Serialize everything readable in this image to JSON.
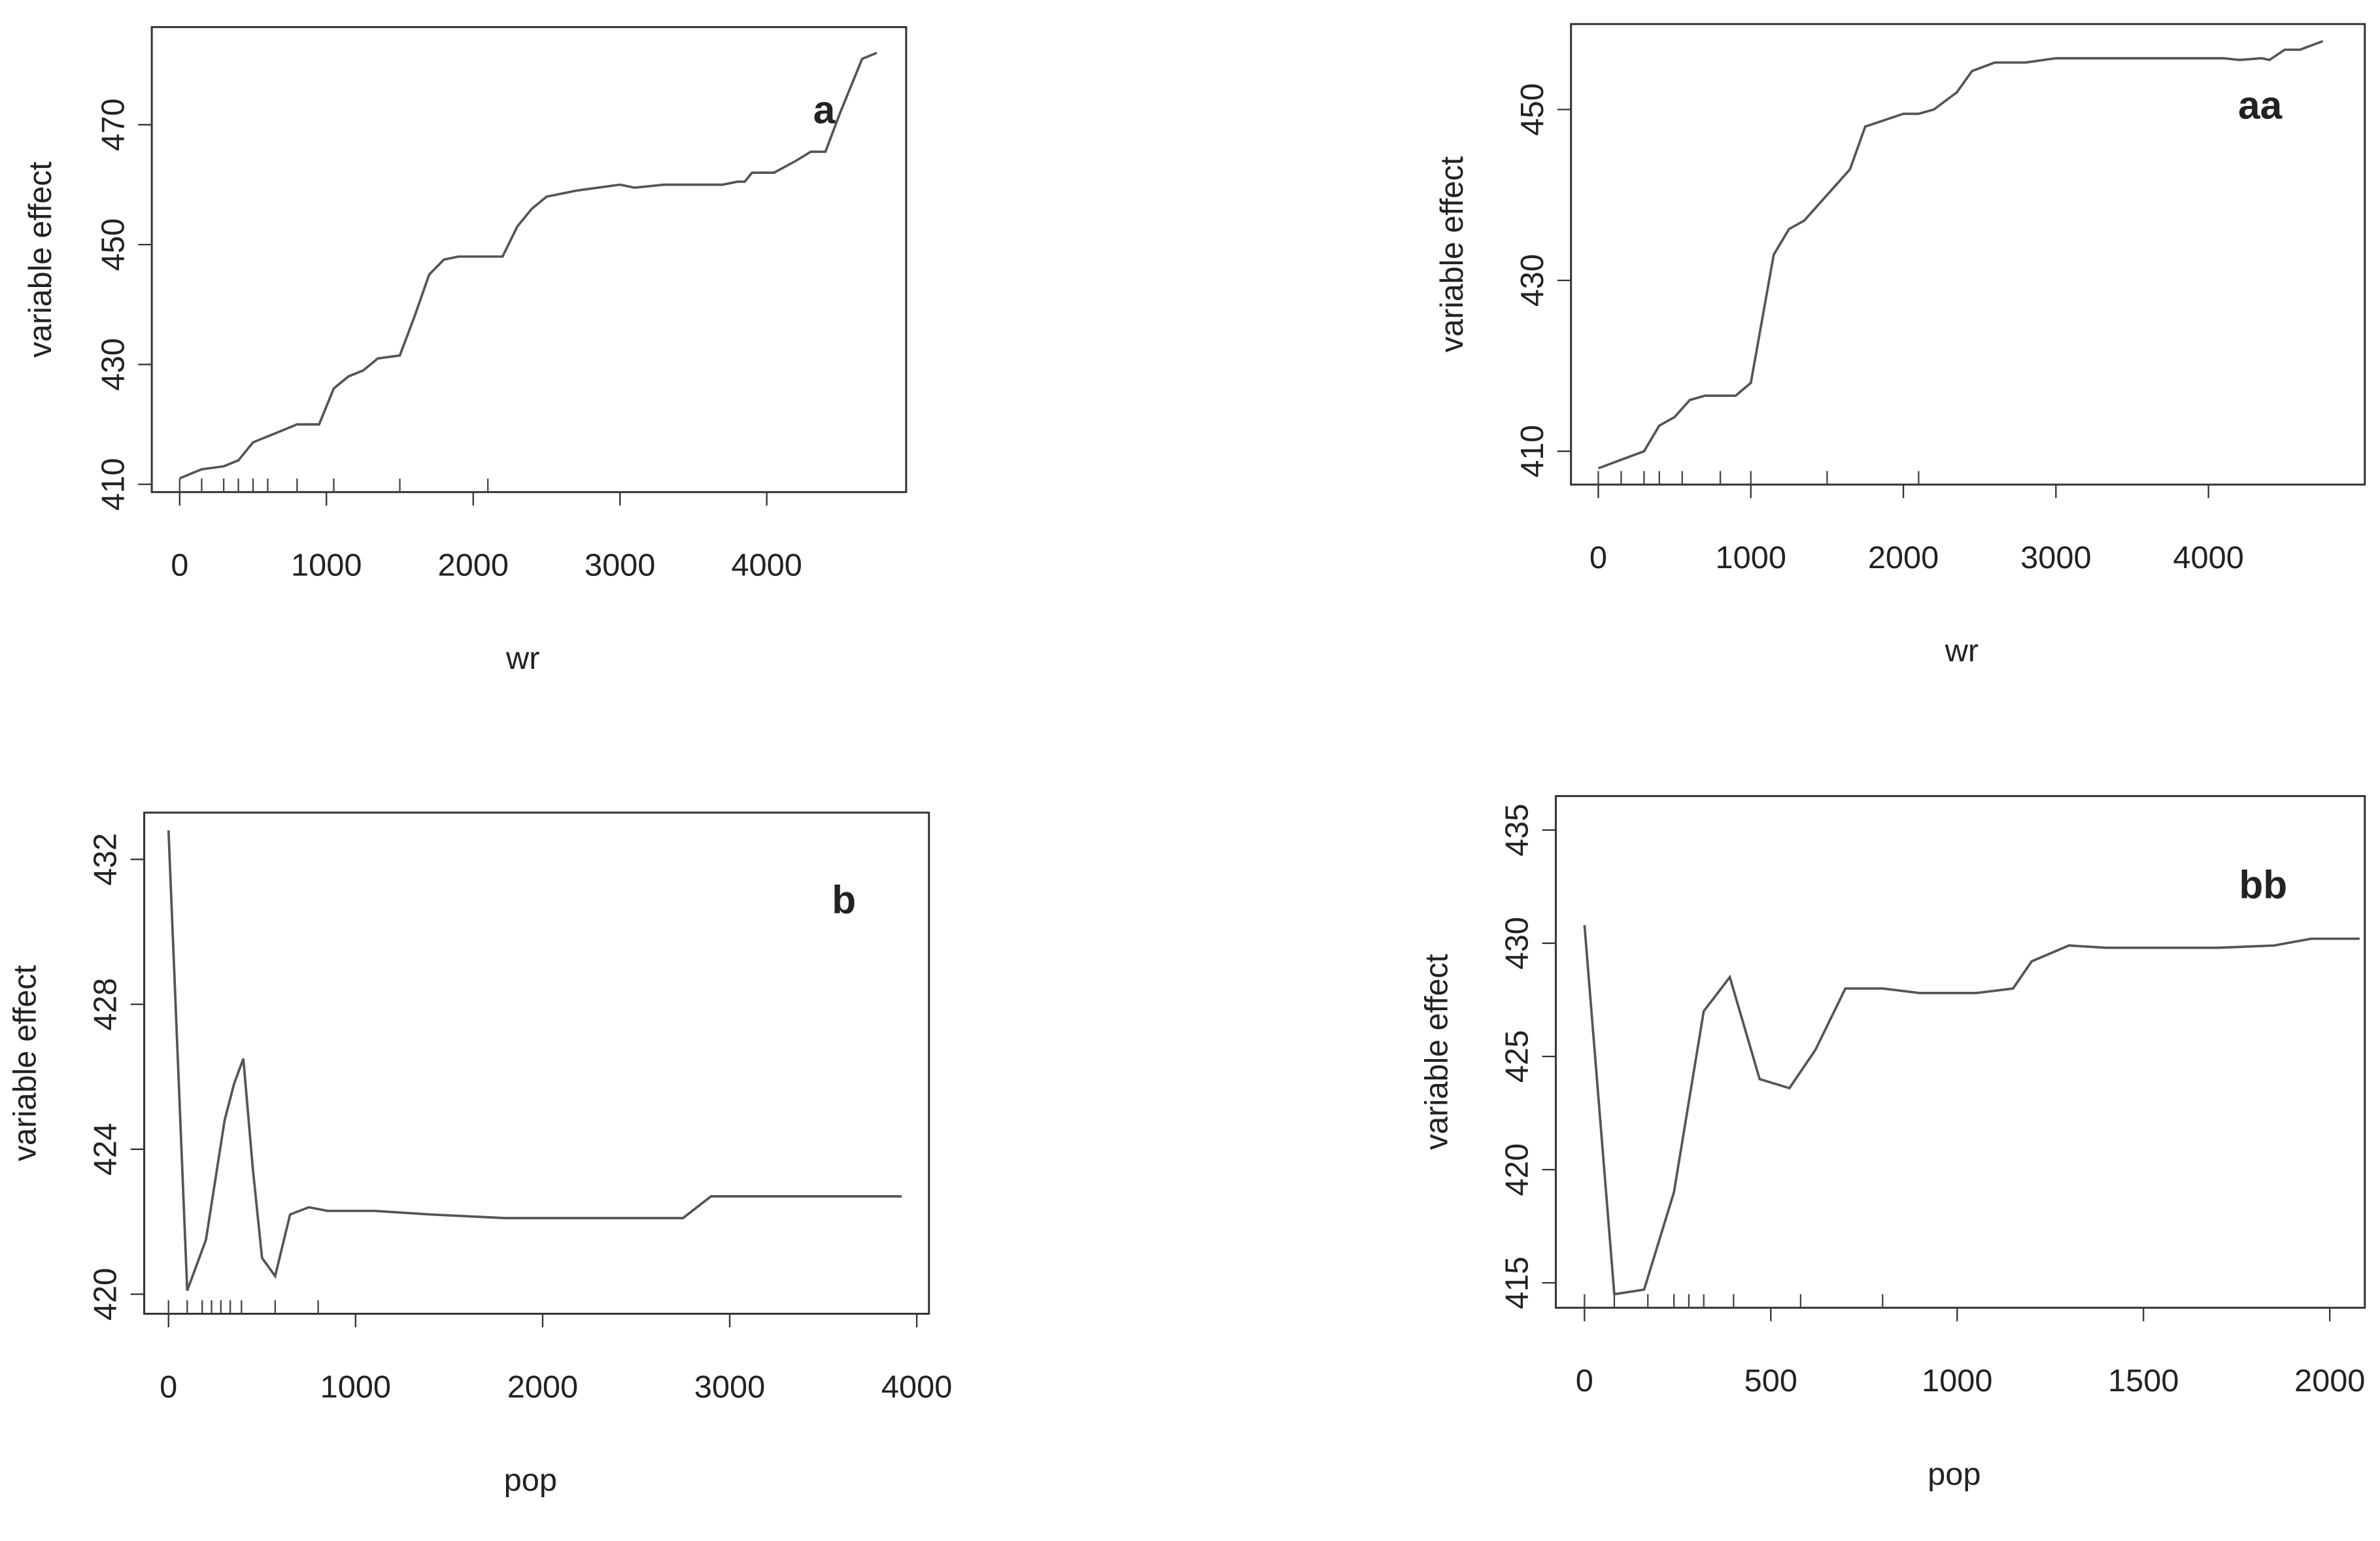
{
  "chart_data": [
    {
      "type": "line",
      "title": "a",
      "xlabel": "wr",
      "ylabel": "variable effect",
      "color": "#555555",
      "x": [
        0,
        150,
        300,
        400,
        500,
        600,
        700,
        800,
        950,
        1050,
        1150,
        1250,
        1350,
        1500,
        1600,
        1700,
        1800,
        1900,
        2000,
        2200,
        2300,
        2400,
        2500,
        2700,
        3000,
        3100,
        3300,
        3700,
        3800,
        3850,
        3900,
        4050,
        4200,
        4300,
        4400,
        4500,
        4650,
        4750
      ],
      "values": [
        411,
        412.5,
        413,
        414,
        417,
        418,
        419,
        420,
        420,
        426,
        428,
        429,
        431,
        431.5,
        438,
        445,
        447.5,
        448,
        448,
        448,
        453,
        456,
        458,
        459,
        460,
        459.5,
        460,
        460,
        460.5,
        460.5,
        462,
        462,
        464,
        465.5,
        465.5,
        472,
        481,
        482
      ],
      "rug": [
        0,
        150,
        300,
        400,
        500,
        600,
        800,
        1050,
        1500,
        2100
      ],
      "xlim": [
        -190,
        4950
      ],
      "ylim": [
        408.7,
        486.3
      ],
      "xticks": [
        0,
        1000,
        2000,
        3000,
        4000
      ],
      "yticks": [
        410,
        430,
        450,
        470
      ]
    },
    {
      "type": "line",
      "title": "aa",
      "xlabel": "wr",
      "ylabel": "variable effect",
      "color": "#555555",
      "x": [
        0,
        150,
        300,
        400,
        500,
        600,
        700,
        900,
        1000,
        1050,
        1100,
        1150,
        1250,
        1350,
        1450,
        1550,
        1650,
        1750,
        2000,
        2100,
        2200,
        2350,
        2450,
        2600,
        2800,
        3000,
        4100,
        4200,
        4350,
        4400,
        4500,
        4600,
        4750
      ],
      "values": [
        408,
        409,
        410,
        413,
        414,
        416,
        416.5,
        416.5,
        418,
        423,
        428,
        433,
        436,
        437,
        439,
        441,
        443,
        448,
        449.5,
        449.5,
        450,
        452,
        454.5,
        455.5,
        455.5,
        456,
        456,
        455.8,
        456,
        455.8,
        457,
        457,
        458
      ],
      "rug": [
        0,
        150,
        300,
        400,
        550,
        800,
        1000,
        1500,
        2100
      ],
      "xlim": [
        -179,
        5025
      ],
      "ylim": [
        406.1,
        460
      ],
      "xticks": [
        0,
        1000,
        2000,
        3000,
        4000
      ],
      "yticks": [
        410,
        430,
        450
      ]
    },
    {
      "type": "line",
      "title": "b",
      "xlabel": "pop",
      "ylabel": "variable effect",
      "color": "#555555",
      "x": [
        0,
        100,
        200,
        300,
        350,
        400,
        450,
        500,
        570,
        650,
        750,
        850,
        1100,
        1400,
        1800,
        2750,
        2900,
        3900,
        3920
      ],
      "values": [
        432.8,
        420.1,
        421.5,
        424.8,
        425.8,
        426.5,
        423.5,
        421,
        420.5,
        422.2,
        422.4,
        422.3,
        422.3,
        422.2,
        422.1,
        422.1,
        422.7,
        422.7,
        422.7
      ],
      "rug": [
        0,
        100,
        180,
        230,
        280,
        330,
        390,
        570,
        800
      ],
      "xlim": [
        -130,
        4065
      ],
      "ylim": [
        419.46,
        433.29
      ],
      "xticks": [
        0,
        1000,
        2000,
        3000,
        4000
      ],
      "yticks": [
        420,
        424,
        428,
        432
      ]
    },
    {
      "type": "line",
      "title": "bb",
      "xlabel": "pop",
      "ylabel": "variable effect",
      "color": "#555555",
      "x": [
        0,
        80,
        160,
        240,
        320,
        390,
        470,
        550,
        620,
        700,
        800,
        900,
        1050,
        1150,
        1200,
        1300,
        1400,
        1700,
        1850,
        1950,
        2080
      ],
      "values": [
        430.8,
        414.5,
        414.7,
        419,
        427,
        428.5,
        424,
        423.6,
        425.3,
        428,
        428,
        427.8,
        427.8,
        428,
        429.2,
        429.9,
        429.8,
        429.8,
        429.9,
        430.2,
        430.2
      ],
      "rug": [
        0,
        80,
        170,
        240,
        280,
        320,
        400,
        580,
        800
      ],
      "xlim": [
        -77,
        2094
      ],
      "ylim": [
        413.9,
        436.5
      ],
      "xticks": [
        0,
        500,
        1000,
        1500,
        2000
      ],
      "yticks": [
        415,
        420,
        425,
        430,
        435
      ]
    }
  ]
}
